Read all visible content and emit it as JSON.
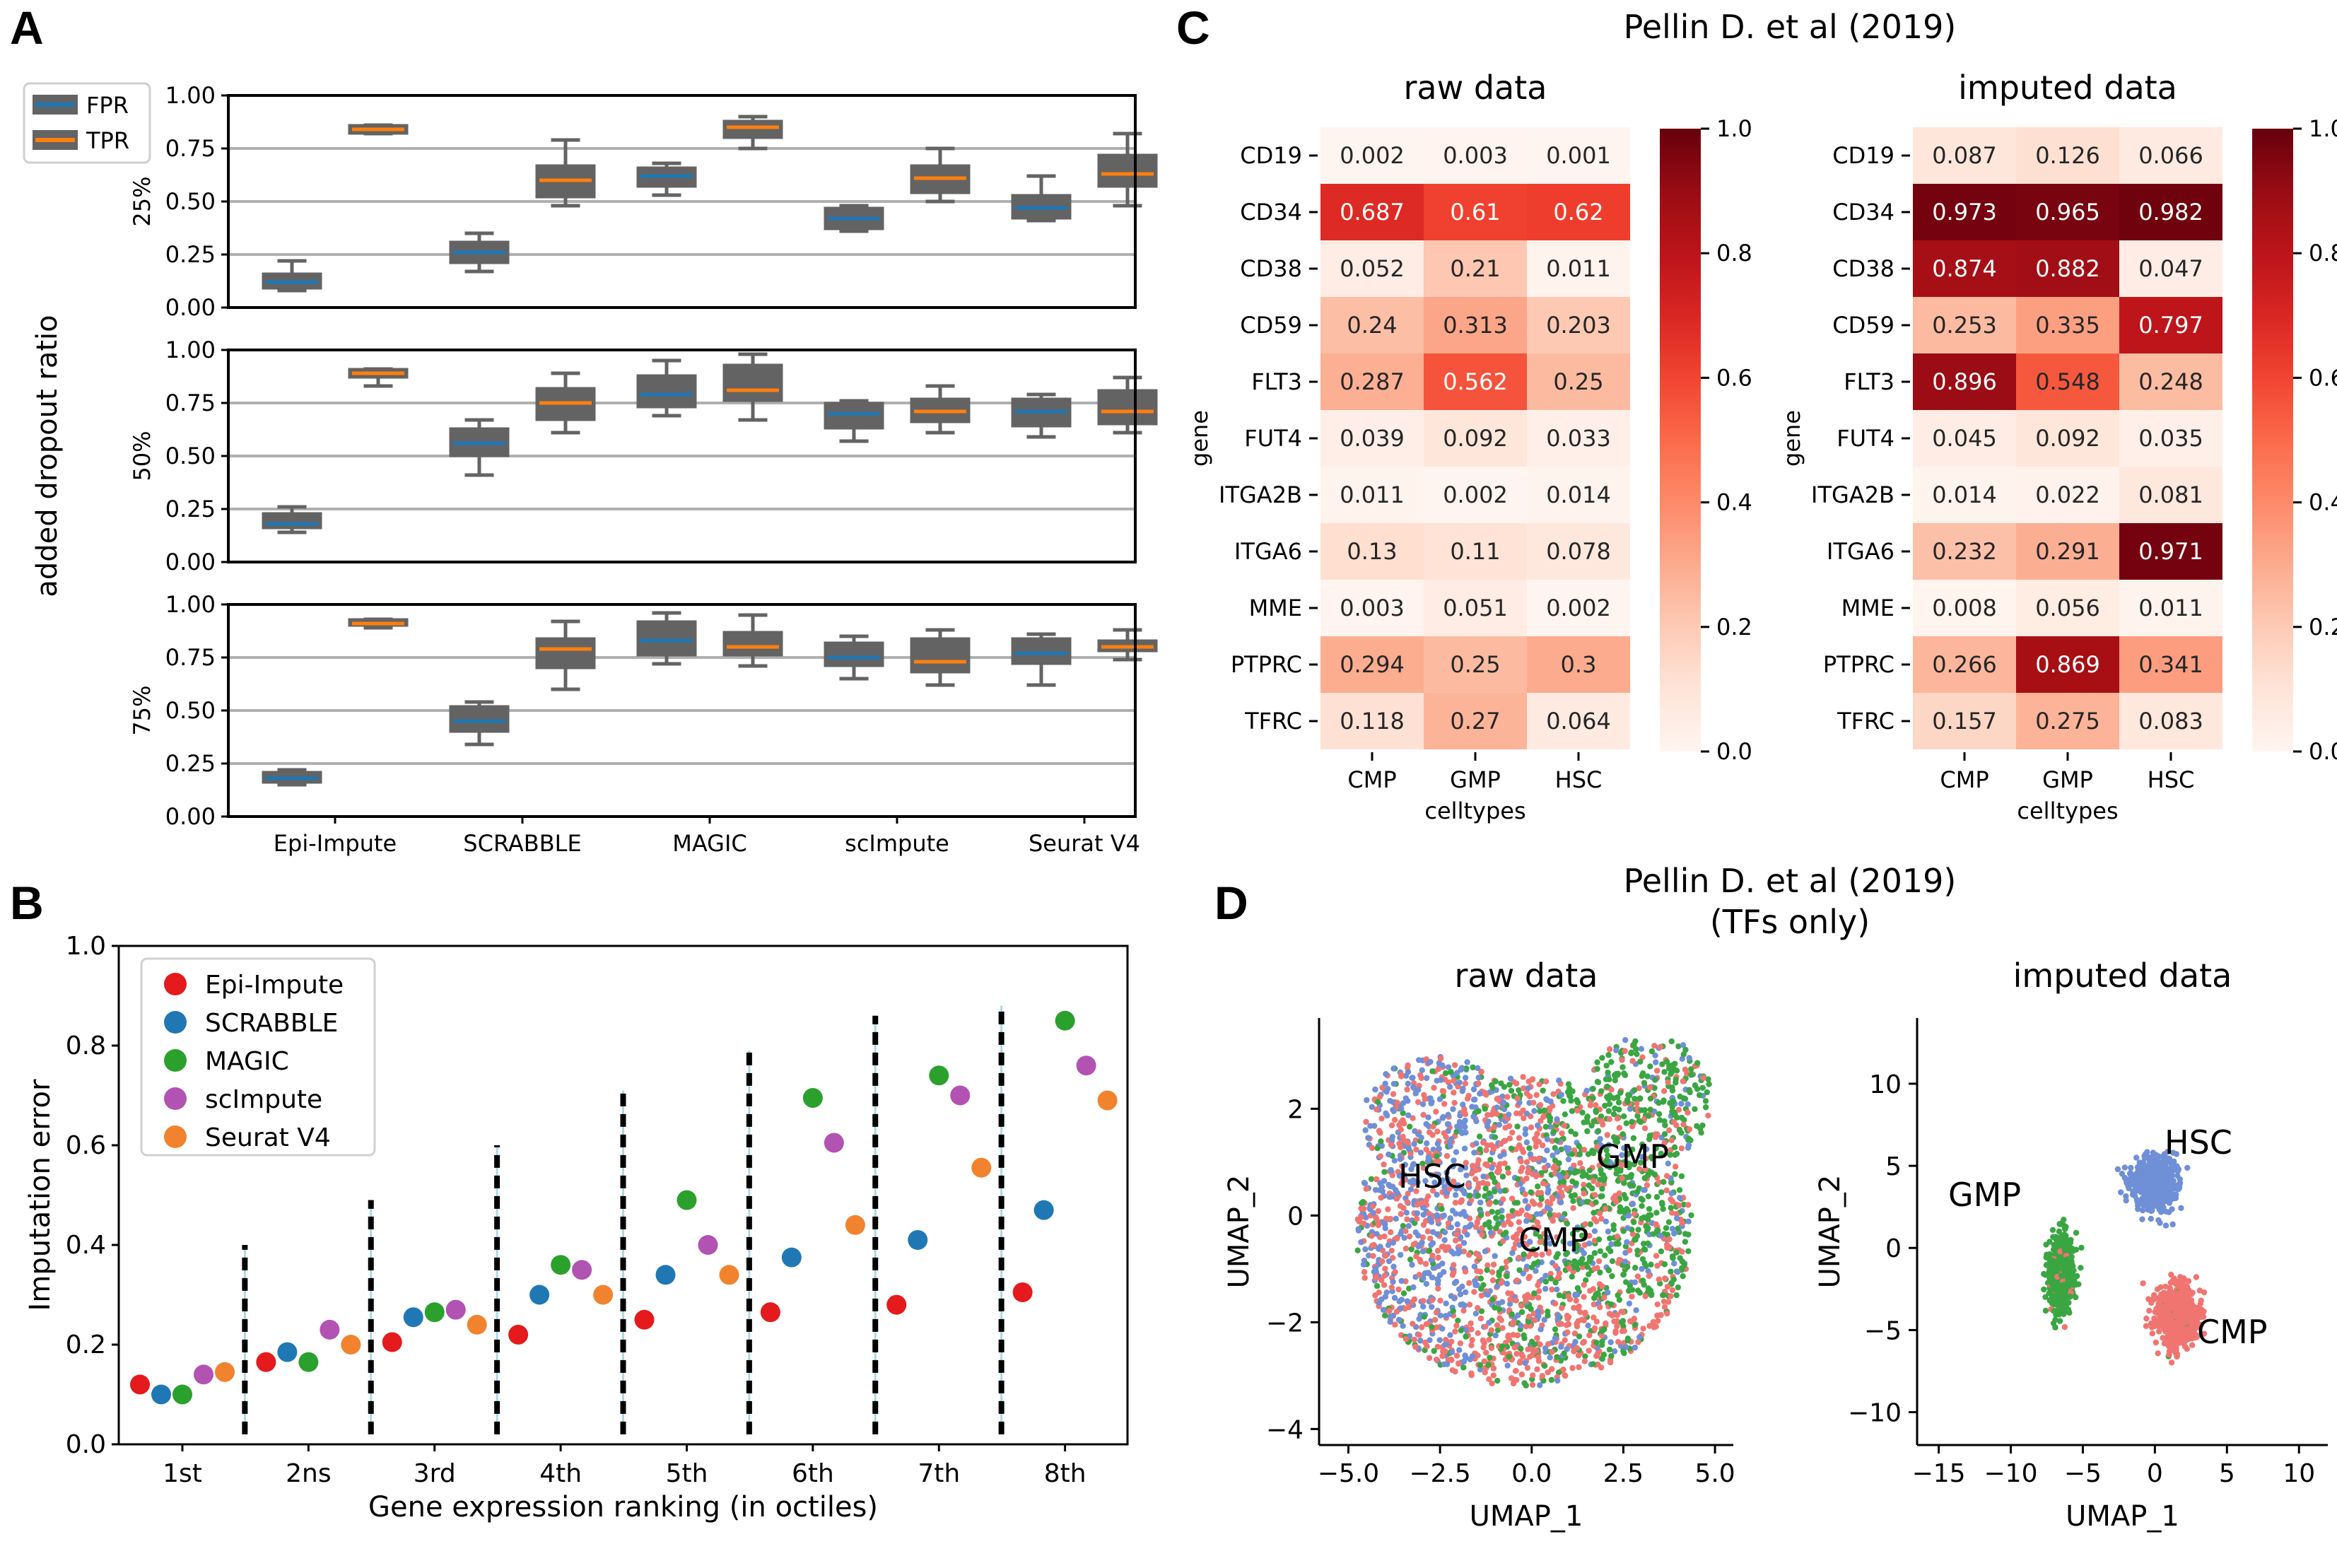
{
  "panel_labels": {
    "A": "A",
    "B": "B",
    "C": "C",
    "D": "D"
  },
  "colors": {
    "fpr": "#1f77b4",
    "tpr": "#ff7f0e",
    "box": "#636363",
    "epi": "#e41a1c",
    "scr": "#1f78b4",
    "mag": "#2ca02c",
    "sci": "#b252b2",
    "seu": "#f2832e",
    "cmp": "#f07571",
    "gmp": "#3aa642",
    "hsc": "#6f8fd6"
  },
  "chart_data": [
    {
      "type": "box",
      "panel": "A",
      "ylabel": "added dropout ratio",
      "legend": [
        "FPR",
        "TPR"
      ],
      "categories": [
        "Epi-Impute",
        "SCRABBLE",
        "MAGIC",
        "scImpute",
        "Seurat V4"
      ],
      "ylim": [
        0,
        1
      ],
      "yticks": [
        "0.00",
        "0.25",
        "0.50",
        "0.75",
        "1.00"
      ],
      "subplots": [
        {
          "label": "25%",
          "boxes": {
            "FPR": [
              [
                0.08,
                0.09,
                0.12,
                0.16,
                0.22
              ],
              [
                0.17,
                0.21,
                0.26,
                0.31,
                0.35
              ],
              [
                0.53,
                0.57,
                0.62,
                0.66,
                0.68
              ],
              [
                0.36,
                0.37,
                0.42,
                0.47,
                0.48
              ],
              [
                0.41,
                0.42,
                0.47,
                0.53,
                0.62
              ]
            ],
            "TPR": [
              [
                0.82,
                0.82,
                0.84,
                0.86,
                0.86
              ],
              [
                0.48,
                0.52,
                0.6,
                0.67,
                0.79
              ],
              [
                0.75,
                0.8,
                0.85,
                0.88,
                0.9
              ],
              [
                0.5,
                0.54,
                0.61,
                0.67,
                0.75
              ],
              [
                0.48,
                0.57,
                0.63,
                0.72,
                0.82
              ]
            ]
          }
        },
        {
          "label": "50%",
          "boxes": {
            "FPR": [
              [
                0.14,
                0.16,
                0.18,
                0.23,
                0.26
              ],
              [
                0.41,
                0.5,
                0.56,
                0.63,
                0.67
              ],
              [
                0.69,
                0.73,
                0.79,
                0.88,
                0.95
              ],
              [
                0.57,
                0.63,
                0.7,
                0.75,
                0.76
              ],
              [
                0.59,
                0.64,
                0.71,
                0.77,
                0.79
              ]
            ],
            "TPR": [
              [
                0.83,
                0.87,
                0.89,
                0.91,
                0.91
              ],
              [
                0.61,
                0.67,
                0.75,
                0.82,
                0.89
              ],
              [
                0.67,
                0.76,
                0.81,
                0.93,
                0.98
              ],
              [
                0.61,
                0.66,
                0.71,
                0.77,
                0.83
              ],
              [
                0.61,
                0.65,
                0.71,
                0.81,
                0.87
              ]
            ]
          }
        },
        {
          "label": "75%",
          "boxes": {
            "FPR": [
              [
                0.15,
                0.16,
                0.18,
                0.21,
                0.22
              ],
              [
                0.34,
                0.4,
                0.45,
                0.52,
                0.54
              ],
              [
                0.72,
                0.76,
                0.83,
                0.92,
                0.96
              ],
              [
                0.65,
                0.71,
                0.75,
                0.82,
                0.85
              ],
              [
                0.62,
                0.72,
                0.77,
                0.84,
                0.86
              ]
            ],
            "TPR": [
              [
                0.89,
                0.9,
                0.91,
                0.93,
                0.93
              ],
              [
                0.6,
                0.7,
                0.79,
                0.84,
                0.92
              ],
              [
                0.71,
                0.76,
                0.8,
                0.87,
                0.95
              ],
              [
                0.62,
                0.68,
                0.73,
                0.84,
                0.88
              ],
              [
                0.74,
                0.78,
                0.8,
                0.83,
                0.88
              ]
            ]
          }
        }
      ]
    },
    {
      "type": "scatter",
      "panel": "B",
      "xlabel": "Gene expression ranking (in octiles)",
      "ylabel": "Imputation error",
      "categories": [
        "1st",
        "2ns",
        "3rd",
        "4th",
        "5th",
        "6th",
        "7th",
        "8th"
      ],
      "ylim": [
        0,
        1
      ],
      "yticks": [
        "0.0",
        "0.2",
        "0.4",
        "0.6",
        "0.8",
        "1.0"
      ],
      "series": [
        {
          "name": "Epi-Impute",
          "values": [
            0.12,
            0.165,
            0.205,
            0.22,
            0.25,
            0.265,
            0.28,
            0.305
          ]
        },
        {
          "name": "SCRABBLE",
          "values": [
            0.1,
            0.185,
            0.255,
            0.3,
            0.34,
            0.375,
            0.41,
            0.47
          ]
        },
        {
          "name": "MAGIC",
          "values": [
            0.1,
            0.165,
            0.265,
            0.36,
            0.49,
            0.695,
            0.74,
            0.85
          ]
        },
        {
          "name": "scImpute",
          "values": [
            0.14,
            0.23,
            0.27,
            0.35,
            0.4,
            0.605,
            0.7,
            0.76
          ]
        },
        {
          "name": "Seurat V4",
          "values": [
            0.145,
            0.2,
            0.24,
            0.3,
            0.34,
            0.44,
            0.555,
            0.69
          ]
        }
      ],
      "separators": [
        0.4,
        0.49,
        0.6,
        0.71,
        0.79,
        0.86,
        0.88
      ]
    },
    {
      "type": "heatmap",
      "panel": "C",
      "title": "Pellin D. et al (2019)",
      "ylabel": "gene",
      "xlabel": "celltypes",
      "rows": [
        "CD19",
        "CD34",
        "CD38",
        "CD59",
        "FLT3",
        "FUT4",
        "ITGA2B",
        "ITGA6",
        "MME",
        "PTPRC",
        "TFRC"
      ],
      "columns": [
        "CMP",
        "GMP",
        "HSC"
      ],
      "colorbar_ticks": [
        "0.0",
        "0.2",
        "0.4",
        "0.6",
        "0.8",
        "1.0"
      ],
      "maps": [
        {
          "title": "raw data",
          "values": [
            [
              "0.002",
              "0.003",
              "0.001"
            ],
            [
              "0.687",
              "0.61",
              "0.62"
            ],
            [
              "0.052",
              "0.21",
              "0.011"
            ],
            [
              "0.24",
              "0.313",
              "0.203"
            ],
            [
              "0.287",
              "0.562",
              "0.25"
            ],
            [
              "0.039",
              "0.092",
              "0.033"
            ],
            [
              "0.011",
              "0.002",
              "0.014"
            ],
            [
              "0.13",
              "0.11",
              "0.078"
            ],
            [
              "0.003",
              "0.051",
              "0.002"
            ],
            [
              "0.294",
              "0.25",
              "0.3"
            ],
            [
              "0.118",
              "0.27",
              "0.064"
            ]
          ]
        },
        {
          "title": "imputed data",
          "values": [
            [
              "0.087",
              "0.126",
              "0.066"
            ],
            [
              "0.973",
              "0.965",
              "0.982"
            ],
            [
              "0.874",
              "0.882",
              "0.047"
            ],
            [
              "0.253",
              "0.335",
              "0.797"
            ],
            [
              "0.896",
              "0.548",
              "0.248"
            ],
            [
              "0.045",
              "0.092",
              "0.035"
            ],
            [
              "0.014",
              "0.022",
              "0.081"
            ],
            [
              "0.232",
              "0.291",
              "0.971"
            ],
            [
              "0.008",
              "0.056",
              "0.011"
            ],
            [
              "0.266",
              "0.869",
              "0.341"
            ],
            [
              "0.157",
              "0.275",
              "0.083"
            ]
          ]
        }
      ]
    },
    {
      "type": "scatter",
      "panel": "D",
      "title": "Pellin D. et al (2019)",
      "subtitle": "(TFs only)",
      "plots": [
        {
          "title": "raw data",
          "xlabel": "UMAP_1",
          "ylabel": "UMAP_2",
          "xlim": [
            -5.8,
            5.5
          ],
          "ylim": [
            -4.3,
            3.7
          ],
          "xticks": [
            "−5.0",
            "−2.5",
            "0.0",
            "2.5",
            "5.0"
          ],
          "yticks": [
            "−4",
            "−2",
            "0",
            "2"
          ],
          "cluster_labels": [
            "HSC",
            "GMP",
            "CMP"
          ]
        },
        {
          "title": "imputed data",
          "xlabel": "UMAP_1",
          "ylabel": "UMAP_2",
          "xlim": [
            -16.5,
            12
          ],
          "ylim": [
            -12,
            14
          ],
          "xticks": [
            "−15",
            "−10",
            "−5",
            "0",
            "5",
            "10"
          ],
          "yticks": [
            "−10",
            "−5",
            "0",
            "5",
            "10"
          ],
          "cluster_labels": [
            "HSC",
            "GMP",
            "CMP"
          ]
        }
      ]
    }
  ]
}
